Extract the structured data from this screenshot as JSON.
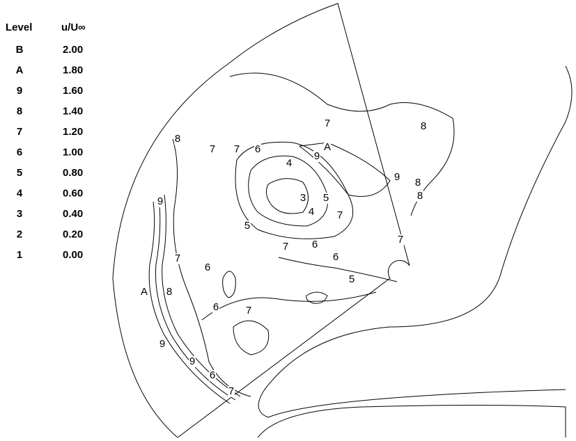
{
  "legend": {
    "header": [
      "Level",
      "u/U∞"
    ],
    "rows": [
      [
        "B",
        "2.00"
      ],
      [
        "A",
        "1.80"
      ],
      [
        "9",
        "1.60"
      ],
      [
        "8",
        "1.40"
      ],
      [
        "7",
        "1.20"
      ],
      [
        "6",
        "1.00"
      ],
      [
        "5",
        "0.80"
      ],
      [
        "4",
        "0.60"
      ],
      [
        "3",
        "0.40"
      ],
      [
        "2",
        "0.20"
      ],
      [
        "1",
        "0.00"
      ]
    ]
  },
  "contour_labels": [
    "7",
    "8",
    "8",
    "7",
    "7",
    "6",
    "A",
    "9",
    "4",
    "9",
    "8",
    "8",
    "3",
    "5",
    "9",
    "4",
    "7",
    "5",
    "7",
    "7",
    "6",
    "6",
    "7",
    "6",
    "5",
    "A",
    "8",
    "6",
    "7",
    "9",
    "9",
    "6",
    "7"
  ]
}
